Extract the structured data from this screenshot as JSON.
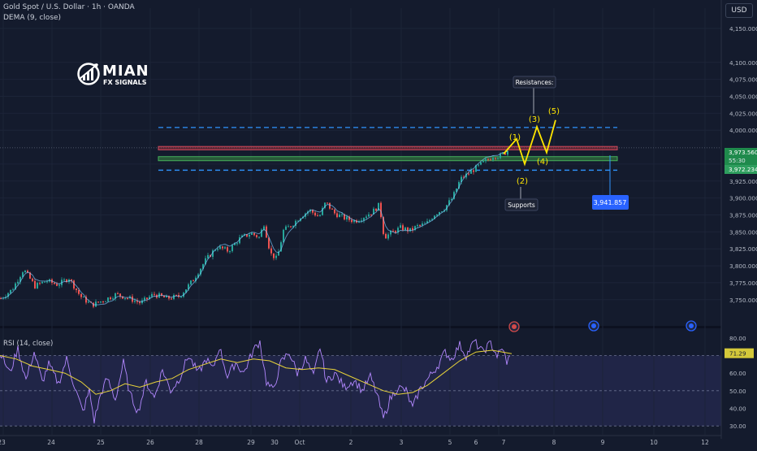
{
  "header": {
    "title": "Gold Spot / U.S. Dollar · 1h · OANDA",
    "indicator": "DEMA (9, close)",
    "currency": "USD"
  },
  "logo": {
    "name": "MIAN",
    "sub": "FX SIGNALS"
  },
  "colors": {
    "background": "#141b2d",
    "up": "#26a69a",
    "down": "#ef5350",
    "wave": "#ffe600",
    "level": "#2f95ff",
    "rsi": "#b388ff",
    "rsi_ma": "#e8d33a"
  },
  "chart_data": [
    {
      "type": "candlestick",
      "title": "Gold Spot / U.S. Dollar · 1h · OANDA",
      "ylim": [
        3715,
        4180
      ],
      "y_ticks": [
        3750,
        3775,
        3800,
        3825,
        3850,
        3875,
        3900,
        3925,
        3950,
        4000,
        4025,
        4050,
        4075,
        4100,
        4150
      ],
      "y_tick_labels": [
        "3,750.000",
        "3,775.000",
        "3,800.000",
        "3,825.000",
        "3,850.000",
        "3,875.000",
        "3,900.000",
        "3,925.000",
        "3,950.000",
        "4,000.000",
        "4,025.000",
        "4,050.000",
        "4,075.000",
        "4,100.000",
        "4,150.000"
      ],
      "x_ticks": [
        "23",
        "24",
        "25",
        "26",
        "28",
        "29",
        "30",
        "Oct",
        "2",
        "3",
        "5",
        "6",
        "7",
        "8",
        "9",
        "10",
        "12"
      ],
      "close_anchors": [
        [
          0,
          3752
        ],
        [
          14,
          3765
        ],
        [
          28,
          3795
        ],
        [
          42,
          3770
        ],
        [
          56,
          3778
        ],
        [
          70,
          3772
        ],
        [
          84,
          3782
        ],
        [
          98,
          3755
        ],
        [
          112,
          3742
        ],
        [
          128,
          3750
        ],
        [
          142,
          3758
        ],
        [
          158,
          3752
        ],
        [
          172,
          3745
        ],
        [
          188,
          3758
        ],
        [
          204,
          3752
        ],
        [
          220,
          3755
        ],
        [
          236,
          3778
        ],
        [
          252,
          3808
        ],
        [
          266,
          3828
        ],
        [
          280,
          3822
        ],
        [
          294,
          3840
        ],
        [
          308,
          3848
        ],
        [
          318,
          3842
        ],
        [
          324,
          3862
        ],
        [
          332,
          3818
        ],
        [
          340,
          3810
        ],
        [
          348,
          3852
        ],
        [
          358,
          3860
        ],
        [
          368,
          3872
        ],
        [
          380,
          3882
        ],
        [
          392,
          3872
        ],
        [
          400,
          3894
        ],
        [
          410,
          3878
        ],
        [
          424,
          3870
        ],
        [
          436,
          3866
        ],
        [
          446,
          3872
        ],
        [
          458,
          3880
        ],
        [
          466,
          3890
        ],
        [
          472,
          3842
        ],
        [
          480,
          3848
        ],
        [
          492,
          3856
        ],
        [
          504,
          3852
        ],
        [
          512,
          3858
        ],
        [
          524,
          3862
        ],
        [
          534,
          3876
        ],
        [
          546,
          3885
        ],
        [
          556,
          3900
        ],
        [
          566,
          3928
        ],
        [
          580,
          3940
        ],
        [
          594,
          3952
        ],
        [
          606,
          3962
        ],
        [
          616,
          3962
        ],
        [
          624,
          3970
        ]
      ],
      "last_price": "3,973.560",
      "countdown": "55:30",
      "dema_value": "3,972.234",
      "target": "3,941.857",
      "levels": [
        {
          "name": "resistance-dashed",
          "price": 4004,
          "style": "dashed"
        },
        {
          "name": "resistance-zone",
          "low": 3971,
          "high": 3976
        },
        {
          "name": "support-zone",
          "low": 3955,
          "high": 3961
        },
        {
          "name": "support-dashed",
          "price": 3941,
          "style": "dashed"
        }
      ],
      "wave_labels": [
        "(1)",
        "(2)",
        "(3)",
        "(4)",
        "(5)"
      ],
      "wave_points": [
        [
          620,
          3965
        ],
        [
          636,
          3987
        ],
        [
          646,
          3950
        ],
        [
          661,
          4005
        ],
        [
          673,
          3967
        ],
        [
          684,
          4015
        ]
      ],
      "annotations": [
        "Resistances:",
        "Supports"
      ]
    },
    {
      "type": "line",
      "title": "RSI (14, close)",
      "ylim": [
        25,
        85
      ],
      "y_ticks": [
        30,
        40,
        50,
        60,
        70,
        80
      ],
      "y_tick_labels": [
        "30.00",
        "40.00",
        "50.00",
        "60.00",
        "70.00",
        "80.00"
      ],
      "band": [
        30,
        70
      ],
      "current": "71.29",
      "rsi_anchors": [
        [
          0,
          72
        ],
        [
          12,
          60
        ],
        [
          22,
          74
        ],
        [
          32,
          56
        ],
        [
          42,
          72
        ],
        [
          52,
          55
        ],
        [
          60,
          65
        ],
        [
          72,
          54
        ],
        [
          82,
          68
        ],
        [
          92,
          52
        ],
        [
          102,
          38
        ],
        [
          110,
          50
        ],
        [
          116,
          33
        ],
        [
          124,
          48
        ],
        [
          132,
          57
        ],
        [
          142,
          45
        ],
        [
          152,
          66
        ],
        [
          160,
          48
        ],
        [
          170,
          38
        ],
        [
          180,
          55
        ],
        [
          190,
          46
        ],
        [
          200,
          62
        ],
        [
          210,
          50
        ],
        [
          220,
          56
        ],
        [
          232,
          70
        ],
        [
          244,
          60
        ],
        [
          254,
          68
        ],
        [
          262,
          62
        ],
        [
          270,
          75
        ],
        [
          280,
          58
        ],
        [
          290,
          66
        ],
        [
          300,
          60
        ],
        [
          312,
          73
        ],
        [
          320,
          78
        ],
        [
          328,
          55
        ],
        [
          336,
          50
        ],
        [
          346,
          66
        ],
        [
          356,
          72
        ],
        [
          366,
          60
        ],
        [
          376,
          68
        ],
        [
          386,
          58
        ],
        [
          394,
          75
        ],
        [
          402,
          55
        ],
        [
          412,
          60
        ],
        [
          424,
          52
        ],
        [
          436,
          56
        ],
        [
          446,
          50
        ],
        [
          456,
          58
        ],
        [
          464,
          48
        ],
        [
          472,
          34
        ],
        [
          480,
          45
        ],
        [
          490,
          52
        ],
        [
          500,
          50
        ],
        [
          508,
          40
        ],
        [
          516,
          50
        ],
        [
          524,
          55
        ],
        [
          532,
          60
        ],
        [
          540,
          65
        ],
        [
          548,
          72
        ],
        [
          556,
          68
        ],
        [
          566,
          76
        ],
        [
          574,
          70
        ],
        [
          584,
          78
        ],
        [
          594,
          72
        ],
        [
          604,
          77
        ],
        [
          612,
          70
        ],
        [
          620,
          74
        ],
        [
          624,
          64
        ],
        [
          628,
          72
        ]
      ],
      "ma_anchors": [
        [
          0,
          70
        ],
        [
          20,
          68
        ],
        [
          40,
          64
        ],
        [
          60,
          62
        ],
        [
          80,
          60
        ],
        [
          100,
          55
        ],
        [
          118,
          48
        ],
        [
          136,
          50
        ],
        [
          154,
          54
        ],
        [
          172,
          52
        ],
        [
          192,
          55
        ],
        [
          212,
          57
        ],
        [
          232,
          62
        ],
        [
          252,
          65
        ],
        [
          272,
          68
        ],
        [
          292,
          66
        ],
        [
          312,
          68
        ],
        [
          332,
          67
        ],
        [
          352,
          63
        ],
        [
          372,
          62
        ],
        [
          392,
          63
        ],
        [
          412,
          62
        ],
        [
          432,
          58
        ],
        [
          452,
          54
        ],
        [
          472,
          50
        ],
        [
          490,
          48
        ],
        [
          508,
          49
        ],
        [
          526,
          53
        ],
        [
          546,
          60
        ],
        [
          566,
          67
        ],
        [
          586,
          72
        ],
        [
          606,
          73
        ],
        [
          630,
          71
        ]
      ]
    }
  ]
}
